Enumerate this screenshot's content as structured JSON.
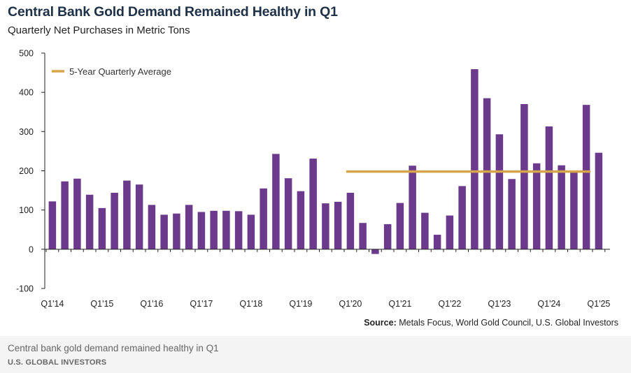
{
  "chart_data": {
    "type": "bar",
    "title": "Central Bank Gold Demand Remained Healthy in Q1",
    "subtitle": "Quarterly Net Purchases in Metric Tons",
    "ylim": [
      -100,
      500
    ],
    "yticks": [
      -100,
      0,
      100,
      200,
      300,
      400,
      500
    ],
    "xtick_labels": [
      "Q1'14",
      "Q1'15",
      "Q1'16",
      "Q1'17",
      "Q1'18",
      "Q1'19",
      "Q1'20",
      "Q1'21",
      "Q1'22",
      "Q1'23",
      "Q1'24",
      "Q1'25"
    ],
    "categories": [
      "Q1'14",
      "Q2'14",
      "Q3'14",
      "Q4'14",
      "Q1'15",
      "Q2'15",
      "Q3'15",
      "Q4'15",
      "Q1'16",
      "Q2'16",
      "Q3'16",
      "Q4'16",
      "Q1'17",
      "Q2'17",
      "Q3'17",
      "Q4'17",
      "Q1'18",
      "Q2'18",
      "Q3'18",
      "Q4'18",
      "Q1'19",
      "Q2'19",
      "Q3'19",
      "Q4'19",
      "Q1'20",
      "Q2'20",
      "Q3'20",
      "Q4'20",
      "Q1'21",
      "Q2'21",
      "Q3'21",
      "Q4'21",
      "Q1'22",
      "Q2'22",
      "Q3'22",
      "Q4'22",
      "Q1'23",
      "Q2'23",
      "Q3'23",
      "Q4'23",
      "Q1'24",
      "Q2'24",
      "Q3'24",
      "Q4'24",
      "Q1'25"
    ],
    "series": [
      {
        "name": "Quarterly Net Purchases",
        "color": "#6c3a8c",
        "values": [
          122,
          173,
          180,
          139,
          105,
          144,
          175,
          165,
          113,
          88,
          91,
          113,
          95,
          98,
          98,
          97,
          88,
          155,
          243,
          181,
          148,
          231,
          117,
          121,
          144,
          67,
          -12,
          64,
          118,
          213,
          93,
          37,
          86,
          161,
          459,
          385,
          293,
          179,
          370,
          219,
          313,
          214,
          200,
          368,
          246
        ]
      }
    ],
    "reference_lines": [
      {
        "name": "5-Year Quarterly Average",
        "value": 198,
        "start": "Q1'20",
        "end": "Q4'24",
        "color": "#d8a64a"
      }
    ],
    "legend": {
      "label": "5-Year Quarterly Average",
      "placement": "top-left"
    },
    "source_label": "Source:",
    "source_text": "Metals Focus, World Gold Council, U.S. Global Investors"
  },
  "caption": "Central bank gold demand remained healthy in Q1",
  "brand": "U.S. GLOBAL INVESTORS"
}
